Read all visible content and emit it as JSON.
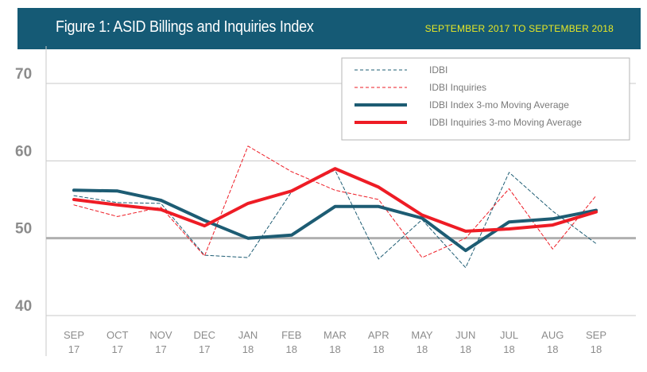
{
  "header": {
    "title": "Figure 1: ASID Billings and Inquiries Index",
    "subtitle": "SEPTEMBER 2017 TO SEPTEMBER 2018"
  },
  "colors": {
    "banner": "#155a75",
    "subtitle": "#e8e825",
    "index_line": "#1d5c73",
    "inquiries_line": "#ee1c25",
    "grid": "#c8c8c8",
    "baseline": "#b0b0b0",
    "tick_text": "#8c8c8c"
  },
  "chart_data": {
    "type": "line",
    "categories": [
      {
        "month": "SEP",
        "year": "17"
      },
      {
        "month": "OCT",
        "year": "17"
      },
      {
        "month": "NOV",
        "year": "17"
      },
      {
        "month": "DEC",
        "year": "17"
      },
      {
        "month": "JAN",
        "year": "18"
      },
      {
        "month": "FEB",
        "year": "18"
      },
      {
        "month": "MAR",
        "year": "18"
      },
      {
        "month": "APR",
        "year": "18"
      },
      {
        "month": "MAY",
        "year": "18"
      },
      {
        "month": "JUN",
        "year": "18"
      },
      {
        "month": "JUL",
        "year": "18"
      },
      {
        "month": "AUG",
        "year": "18"
      },
      {
        "month": "SEP",
        "year": "18"
      }
    ],
    "ylim": [
      40,
      70
    ],
    "yticks": [
      "70",
      "60",
      "50",
      "40"
    ],
    "legend_position": "top-right",
    "series": [
      {
        "name": "IDBI",
        "style": "dashed",
        "color": "#1d5c73",
        "values": [
          55.5,
          54.6,
          54.5,
          47.8,
          47.5,
          56.0,
          58.8,
          47.3,
          52.4,
          46.2,
          58.5,
          53.5,
          49.3
        ]
      },
      {
        "name": "IDBI Inquiries",
        "style": "dashed",
        "color": "#ee1c25",
        "values": [
          54.3,
          52.8,
          54.0,
          47.7,
          61.9,
          58.6,
          56.2,
          55.0,
          47.5,
          50.0,
          56.4,
          48.6,
          55.5
        ]
      },
      {
        "name": "IDBI Index 3-mo Moving Average",
        "style": "solid",
        "color": "#1d5c73",
        "values": [
          56.2,
          56.1,
          54.9,
          52.3,
          50.0,
          50.4,
          54.1,
          54.1,
          52.6,
          48.4,
          52.1,
          52.5,
          53.6
        ]
      },
      {
        "name": "IDBI Inquiries 3-mo Moving Average",
        "style": "solid",
        "color": "#ee1c25",
        "values": [
          55.0,
          54.3,
          53.7,
          51.6,
          54.5,
          56.1,
          59.0,
          56.6,
          53.0,
          50.9,
          51.2,
          51.7,
          53.4
        ]
      }
    ]
  }
}
